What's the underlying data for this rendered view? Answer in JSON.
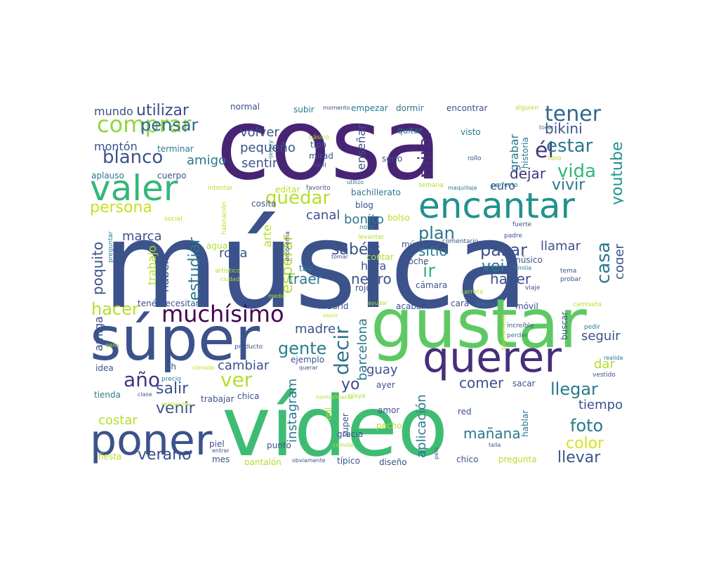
{
  "word_cloud": {
    "palette": "viridis",
    "background": "#ffffff",
    "words": [
      {
        "text": "música",
        "color": "#3b528b"
      },
      {
        "text": "cosa",
        "color": "#482475"
      },
      {
        "text": "vídeo",
        "color": "#3fbc73"
      },
      {
        "text": "gustar",
        "color": "#5ec962"
      },
      {
        "text": "súper",
        "color": "#3b528b"
      },
      {
        "text": "poner",
        "color": "#3b528b"
      },
      {
        "text": "querer",
        "color": "#472d7b"
      },
      {
        "text": "encantar",
        "color": "#21918c"
      },
      {
        "text": "valer",
        "color": "#35b779"
      },
      {
        "text": "muchísimo",
        "color": "#440154"
      },
      {
        "text": "comprar",
        "color": "#8fd744"
      },
      {
        "text": "tener",
        "color": "#31688e"
      },
      {
        "text": "quedar",
        "color": "#b5de2b"
      },
      {
        "text": "persona",
        "color": "#c8e020"
      },
      {
        "text": "blanco",
        "color": "#3b528b"
      },
      {
        "text": "pensar",
        "color": "#31688e"
      },
      {
        "text": "utilizar",
        "color": "#3e4989"
      },
      {
        "text": "él",
        "color": "#46337e"
      },
      {
        "text": "estar",
        "color": "#2a788e"
      },
      {
        "text": "bikini",
        "color": "#3b528b"
      },
      {
        "text": "vida",
        "color": "#35b779"
      },
      {
        "text": "vivir",
        "color": "#2a788e"
      },
      {
        "text": "dejar",
        "color": "#46327e"
      },
      {
        "text": "mirar",
        "color": "#472c7a"
      },
      {
        "text": "plan",
        "color": "#2c728e"
      },
      {
        "text": "pasar",
        "color": "#3b528b"
      },
      {
        "text": "ir",
        "color": "#35b779"
      },
      {
        "text": "vei",
        "color": "#2a788e"
      },
      {
        "text": "haber",
        "color": "#3b528b"
      },
      {
        "text": "llamar",
        "color": "#3b528b"
      },
      {
        "text": "youtube",
        "color": "#1f968b"
      },
      {
        "text": "casa",
        "color": "#2a788e"
      },
      {
        "text": "coger",
        "color": "#3b528b"
      },
      {
        "text": "sabéis",
        "color": "#3b528b"
      },
      {
        "text": "hacer",
        "color": "#b5de2b"
      },
      {
        "text": "gente",
        "color": "#27808e"
      },
      {
        "text": "decir",
        "color": "#2c728e"
      },
      {
        "text": "ver",
        "color": "#b5de2b"
      },
      {
        "text": "año",
        "color": "#46327e"
      },
      {
        "text": "salir",
        "color": "#3b528b"
      },
      {
        "text": "yo",
        "color": "#3e4989"
      },
      {
        "text": "venir",
        "color": "#3b528b"
      },
      {
        "text": "verano",
        "color": "#3b528b"
      },
      {
        "text": "foto",
        "color": "#2a788e"
      },
      {
        "text": "color",
        "color": "#d8e219"
      },
      {
        "text": "llevar",
        "color": "#3b528b"
      },
      {
        "text": "llegar",
        "color": "#2a788e"
      },
      {
        "text": "comer",
        "color": "#3b528b"
      },
      {
        "text": "mañana",
        "color": "#2a788e"
      },
      {
        "text": "estudiar",
        "color": "#2a788e"
      },
      {
        "text": "esperar",
        "color": "#b5de2b"
      },
      {
        "text": "traer",
        "color": "#2a788e"
      },
      {
        "text": "negro",
        "color": "#3b528b"
      },
      {
        "text": "hora",
        "color": "#3b528b"
      },
      {
        "text": "sitio",
        "color": "#2a788e"
      },
      {
        "text": "bonito",
        "color": "#2a788e"
      },
      {
        "text": "canal",
        "color": "#3b528b"
      },
      {
        "text": "ropa",
        "color": "#3b528b"
      },
      {
        "text": "marca",
        "color": "#3b528b"
      },
      {
        "text": "poquito",
        "color": "#3b528b"
      },
      {
        "text": "volver",
        "color": "#3b528b"
      },
      {
        "text": "pequeño",
        "color": "#3b528b"
      },
      {
        "text": "sentir",
        "color": "#3b528b"
      },
      {
        "text": "amigo",
        "color": "#2a788e"
      },
      {
        "text": "montón",
        "color": "#3b528b"
      },
      {
        "text": "mundo",
        "color": "#3b528b"
      },
      {
        "text": "instagram",
        "color": "#2a788e"
      },
      {
        "text": "aplicación",
        "color": "#2a788e"
      },
      {
        "text": "barcelona",
        "color": "#2a788e"
      },
      {
        "text": "guay",
        "color": "#3b528b"
      },
      {
        "text": "cambiar",
        "color": "#3b528b"
      },
      {
        "text": "madre",
        "color": "#3b528b"
      },
      {
        "text": "seguir",
        "color": "#3b528b"
      },
      {
        "text": "dar",
        "color": "#b5de2b"
      },
      {
        "text": "tiempo",
        "color": "#3b528b"
      },
      {
        "text": "costar",
        "color": "#b5de2b"
      },
      {
        "text": "amiga",
        "color": "#3b528b"
      },
      {
        "text": "euro",
        "color": "#3b528b"
      },
      {
        "text": "habéis",
        "color": "#3b528b"
      },
      {
        "text": "trabajo",
        "color": "#b5de2b"
      },
      {
        "text": "arte",
        "color": "#b5de2b"
      },
      {
        "text": "enseñar",
        "color": "#3b528b"
      },
      {
        "text": "grabar",
        "color": "#2a788e"
      },
      {
        "text": "historia",
        "color": "#2a788e"
      },
      {
        "text": "normal",
        "color": "#3b528b"
      },
      {
        "text": "subir",
        "color": "#2a788e"
      },
      {
        "text": "momento",
        "color": "#3b528b"
      },
      {
        "text": "empezar",
        "color": "#2a788e"
      },
      {
        "text": "dormir",
        "color": "#2a788e"
      },
      {
        "text": "encontrar",
        "color": "#3b528b"
      },
      {
        "text": "alguien",
        "color": "#b5de2b"
      },
      {
        "text": "básico",
        "color": "#b5de2b"
      },
      {
        "text": "tipo",
        "color": "#3b528b"
      },
      {
        "text": "mirad",
        "color": "#3b528b"
      },
      {
        "text": "fácil",
        "color": "#3b528b"
      },
      {
        "text": "serio",
        "color": "#3b528b"
      },
      {
        "text": "quitar",
        "color": "#2a788e"
      },
      {
        "text": "visto",
        "color": "#2a788e"
      },
      {
        "text": "rollo",
        "color": "#3b528b"
      },
      {
        "text": "tocar",
        "color": "#2a788e"
      },
      {
        "text": "libro",
        "color": "#b5de2b"
      },
      {
        "text": "terminar",
        "color": "#2a788e"
      },
      {
        "text": "aplauso",
        "color": "#2a788e"
      },
      {
        "text": "cuerpo",
        "color": "#3b528b"
      },
      {
        "text": "jersey",
        "color": "#2a788e"
      },
      {
        "text": "editar",
        "color": "#b5de2b"
      },
      {
        "text": "favorito",
        "color": "#3b528b"
      },
      {
        "text": "utilizo",
        "color": "#2a788e"
      },
      {
        "text": "bachillerato",
        "color": "#2a788e"
      },
      {
        "text": "semana",
        "color": "#b5de2b"
      },
      {
        "text": "maquillaje",
        "color": "#2a788e"
      },
      {
        "text": "perfecto",
        "color": "#2a788e"
      },
      {
        "text": "intentar",
        "color": "#b5de2b"
      },
      {
        "text": "cosita",
        "color": "#3b528b"
      },
      {
        "text": "blog",
        "color": "#3b528b"
      },
      {
        "text": "bolso",
        "color": "#b5de2b"
      },
      {
        "text": "social",
        "color": "#b5de2b"
      },
      {
        "text": "habitación",
        "color": "#b5de2b"
      },
      {
        "text": "nota",
        "color": "#2a788e"
      },
      {
        "text": "levantar",
        "color": "#b5de2b"
      },
      {
        "text": "comentario",
        "color": "#3b528b"
      },
      {
        "text": "padre",
        "color": "#3b528b"
      },
      {
        "text": "agua",
        "color": "#b5de2b"
      },
      {
        "text": "preguntar",
        "color": "#2a788e"
      },
      {
        "text": "problema",
        "color": "#3b528b"
      },
      {
        "text": "azul",
        "color": "#3b528b"
      },
      {
        "text": "tomar",
        "color": "#3b528b"
      },
      {
        "text": "contar",
        "color": "#b5de2b"
      },
      {
        "text": "noche",
        "color": "#3b528b"
      },
      {
        "text": "músicar",
        "color": "#3b528b"
      },
      {
        "text": "músico",
        "color": "#3b528b"
      },
      {
        "text": "familia",
        "color": "#2a788e"
      },
      {
        "text": "tema",
        "color": "#3b528b"
      },
      {
        "text": "probar",
        "color": "#3b528b"
      },
      {
        "text": "artístico",
        "color": "#b5de2b"
      },
      {
        "text": "ciudad",
        "color": "#b5de2b"
      },
      {
        "text": "top",
        "color": "#2a788e"
      },
      {
        "text": "cámara",
        "color": "#3b528b"
      },
      {
        "text": "viaje",
        "color": "#3b528b"
      },
      {
        "text": "carrera",
        "color": "#b5de2b"
      },
      {
        "text": "rojo",
        "color": "#3b528b"
      },
      {
        "text": "medio",
        "color": "#b5de2b"
      },
      {
        "text": "ayudar",
        "color": "#b5de2b"
      },
      {
        "text": "tenéi",
        "color": "#3b528b"
      },
      {
        "text": "necesitar",
        "color": "#3b528b"
      },
      {
        "text": "madrid",
        "color": "#3b528b"
      },
      {
        "text": "morir",
        "color": "#b5de2b"
      },
      {
        "text": "acabar",
        "color": "#3b528b"
      },
      {
        "text": "cara",
        "color": "#3b528b"
      },
      {
        "text": "dinero",
        "color": "#2a788e"
      },
      {
        "text": "móvil",
        "color": "#3b528b"
      },
      {
        "text": "camiseta",
        "color": "#b5de2b"
      },
      {
        "text": "buscar",
        "color": "#3b528b"
      },
      {
        "text": "increíble",
        "color": "#3b528b"
      },
      {
        "text": "perder",
        "color": "#2a788e"
      },
      {
        "text": "pedir",
        "color": "#2a788e"
      },
      {
        "text": "básicamente",
        "color": "#b5de2b"
      },
      {
        "text": "realidad",
        "color": "#2a788e"
      },
      {
        "text": "gana",
        "color": "#b5de2b"
      },
      {
        "text": "producto",
        "color": "#3b528b"
      },
      {
        "text": "ejemplo",
        "color": "#3b528b"
      },
      {
        "text": "idea",
        "color": "#3b528b"
      },
      {
        "text": "ah",
        "color": "#3b528b"
      },
      {
        "text": "cómodo",
        "color": "#b5de2b"
      },
      {
        "text": "querar",
        "color": "#3b528b"
      },
      {
        "text": "vestido",
        "color": "#3b528b"
      },
      {
        "text": "precio",
        "color": "#2a788e"
      },
      {
        "text": "ayer",
        "color": "#3b528b"
      },
      {
        "text": "sacar",
        "color": "#3b528b"
      },
      {
        "text": "clase",
        "color": "#3b528b"
      },
      {
        "text": "normalmente",
        "color": "#b5de2b"
      },
      {
        "text": "playa",
        "color": "#b5de2b"
      },
      {
        "text": "tienda",
        "color": "#2a788e"
      },
      {
        "text": "realmente",
        "color": "#b5de2b"
      },
      {
        "text": "trabajar",
        "color": "#3b528b"
      },
      {
        "text": "chica",
        "color": "#3b528b"
      },
      {
        "text": "mil",
        "color": "#b5de2b"
      },
      {
        "text": "super",
        "color": "#3b528b"
      },
      {
        "text": "amor",
        "color": "#3b528b"
      },
      {
        "text": "red",
        "color": "#3b528b"
      },
      {
        "text": "pecho",
        "color": "#b5de2b"
      },
      {
        "text": "hablar",
        "color": "#2a788e"
      },
      {
        "text": "gracia",
        "color": "#3b528b"
      },
      {
        "text": "piel",
        "color": "#3b528b"
      },
      {
        "text": "entrar",
        "color": "#3b528b"
      },
      {
        "text": "comida",
        "color": "#b5de2b"
      },
      {
        "text": "punto",
        "color": "#3b528b"
      },
      {
        "text": "talla",
        "color": "#3b528b"
      },
      {
        "text": "fiesta",
        "color": "#b5de2b"
      },
      {
        "text": "mes",
        "color": "#3b528b"
      },
      {
        "text": "pantalón",
        "color": "#b5de2b"
      },
      {
        "text": "obviamente",
        "color": "#3b528b"
      },
      {
        "text": "típico",
        "color": "#3b528b"
      },
      {
        "text": "diseño",
        "color": "#3b528b"
      },
      {
        "text": "pelo",
        "color": "#3b528b"
      },
      {
        "text": "chico",
        "color": "#3b528b"
      },
      {
        "text": "pregunta",
        "color": "#b5de2b"
      },
      {
        "text": "fuerte",
        "color": "#3b528b"
      }
    ]
  }
}
